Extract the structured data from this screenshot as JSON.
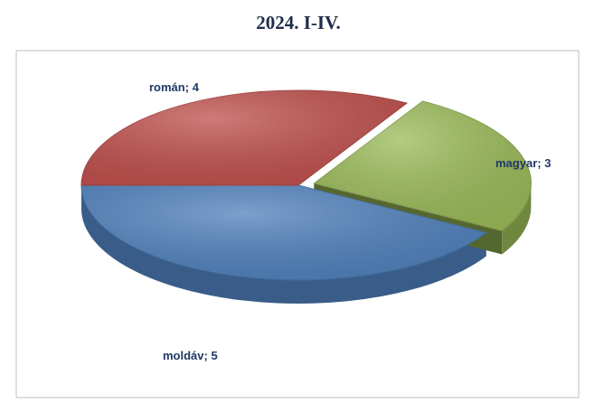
{
  "chart_data": {
    "type": "pie",
    "title": "2024. I-IV.",
    "categories": [
      "moldáv",
      "román",
      "magyar"
    ],
    "values": [
      5,
      4,
      3
    ],
    "colors": [
      "#4f81bd",
      "#c0504d",
      "#9bbb59"
    ],
    "label_separator": "; ",
    "start_angle": 30,
    "exploded": [
      false,
      false,
      true
    ]
  }
}
